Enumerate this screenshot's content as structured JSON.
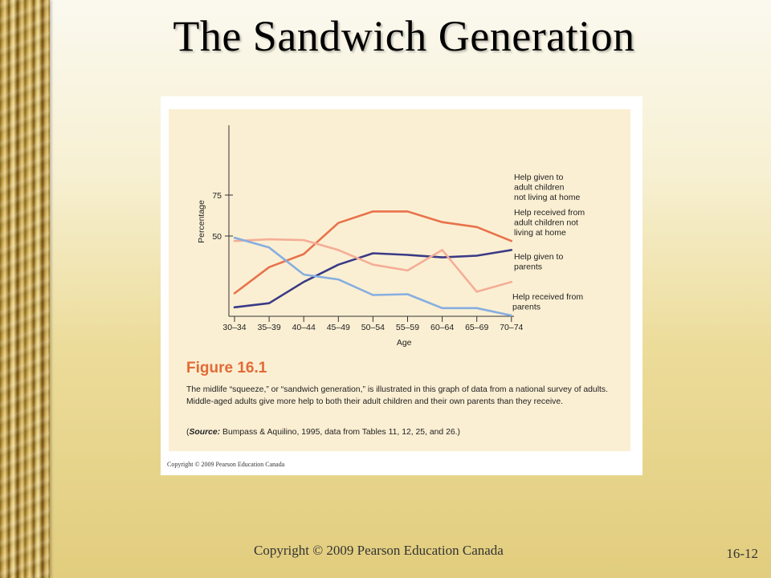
{
  "slide": {
    "title": "The Sandwich Generation",
    "footer_copyright": "Copyright © 2009 Pearson Education Canada",
    "page_number": "16-12"
  },
  "figure": {
    "label": "Figure 16.1",
    "caption": "The midlife “squeeze,” or “sandwich generation,” is illustrated in this graph of data from a national survey of adults. Middle-aged adults give more help to both their adult children and their own parents than they receive.",
    "source_word": "Source:",
    "source_rest": " Bumpass & Aquilino, 1995, data from Tables 11, 12, 25, and 26.)",
    "source_open": "(",
    "card_copyright": "Copyright © 2009 Pearson Education Canada"
  },
  "chart_data": {
    "type": "line",
    "xlabel": "Age",
    "ylabel": "Percentage",
    "yticks": [
      50,
      75
    ],
    "categories": [
      "30–34",
      "35–39",
      "40–44",
      "45–49",
      "50–54",
      "55–59",
      "60–64",
      "65–69",
      "70–74"
    ],
    "series": [
      {
        "name": "Help given to adult children not living at home",
        "label_lines": [
          "Help given to",
          "adult children",
          "not living at home"
        ],
        "color": "#e8724a",
        "values": [
          14,
          30,
          38,
          57,
          64,
          64,
          57.5,
          54.5,
          46
        ]
      },
      {
        "name": "Help received from adult children not living at home",
        "label_lines": [
          "Help received from",
          "adult children not",
          "living at home"
        ],
        "color": "#3a3a86",
        "values": [
          5.5,
          8,
          21,
          31.5,
          38.5,
          37.5,
          36,
          37,
          40.5
        ]
      },
      {
        "name": "Help given to parents",
        "label_lines": [
          "Help given to",
          "parents"
        ],
        "color": "#f4ad96",
        "values": [
          46,
          47,
          46.5,
          40.5,
          31.5,
          28,
          40.5,
          15,
          21
        ]
      },
      {
        "name": "Help received from parents",
        "label_lines": [
          "Help received from",
          "parents"
        ],
        "color": "#86aee0",
        "values": [
          48,
          42,
          25.5,
          22.5,
          13,
          13.5,
          5,
          5,
          0.5
        ]
      }
    ]
  }
}
